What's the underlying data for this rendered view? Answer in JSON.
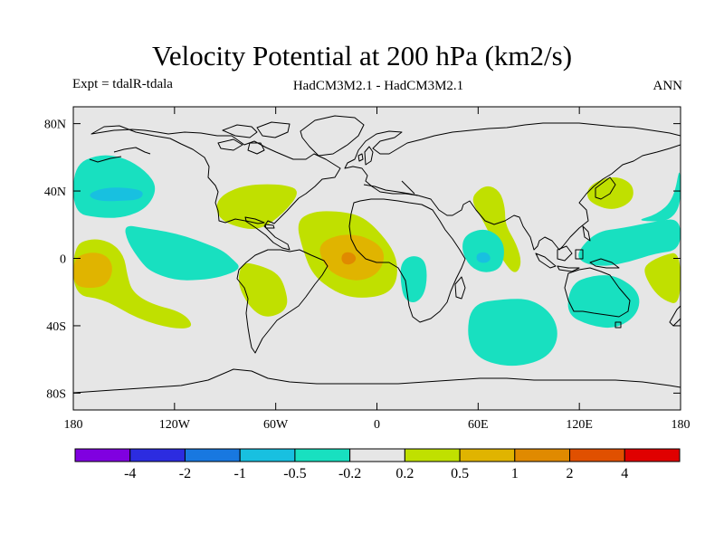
{
  "chart_data": {
    "type": "contour_map",
    "title": "Velocity Potential at 200 hPa (km2/s)",
    "experiment": "Expt = tdalR-tdala",
    "subtitle": "HadCM3M2.1 - HadCM3M2.1",
    "season": "ANN",
    "x_axis": {
      "range": [
        -180,
        180
      ],
      "ticks": [
        -180,
        -120,
        -60,
        0,
        60,
        120,
        180
      ],
      "tick_labels": [
        "180",
        "120W",
        "60W",
        "0",
        "60E",
        "120E",
        "180"
      ]
    },
    "y_axis": {
      "range": [
        -90,
        90
      ],
      "ticks": [
        80,
        40,
        0,
        -40,
        -80
      ],
      "tick_labels": [
        "80N",
        "40N",
        "0",
        "40S",
        "80S"
      ]
    },
    "colorbar": {
      "colors": [
        "#8000e0",
        "#2c2ce0",
        "#1878e0",
        "#18c0e0",
        "#18e0c0",
        "#e6e6e6",
        "#c0e000",
        "#e0b400",
        "#e08a00",
        "#e05000",
        "#e00000"
      ],
      "labels": [
        "-4",
        "-2",
        "-1",
        "-0.5",
        "-0.2",
        "0.2",
        "0.5",
        "1",
        "2",
        "4"
      ]
    },
    "background_color": "#e6e6e6",
    "regions": [
      {
        "name": "NE Pacific negative",
        "level": -0.2,
        "center": [
          -145,
          38
        ],
        "polygon": [
          [
            -180,
            55
          ],
          [
            -165,
            62
          ],
          [
            -150,
            60
          ],
          [
            -137,
            52
          ],
          [
            -130,
            42
          ],
          [
            -136,
            30
          ],
          [
            -150,
            24
          ],
          [
            -165,
            24
          ],
          [
            -180,
            27
          ]
        ]
      },
      {
        "name": "NE Pacific core",
        "level": -0.5,
        "center": [
          -155,
          39
        ],
        "polygon": [
          [
            -172,
            38
          ],
          [
            -162,
            42
          ],
          [
            -148,
            42
          ],
          [
            -138,
            40
          ],
          [
            -140,
            35
          ],
          [
            -152,
            34
          ],
          [
            -166,
            34
          ]
        ]
      },
      {
        "name": "Subtropical East Pacific band",
        "level": -0.2,
        "center": [
          -105,
          0
        ],
        "polygon": [
          [
            -150,
            20
          ],
          [
            -138,
            18
          ],
          [
            -125,
            16
          ],
          [
            -113,
            13
          ],
          [
            -102,
            9
          ],
          [
            -92,
            5
          ],
          [
            -86,
            0
          ],
          [
            -80,
            -6
          ],
          [
            -92,
            -11
          ],
          [
            -105,
            -13
          ],
          [
            -120,
            -13
          ],
          [
            -134,
            -8
          ],
          [
            -140,
            -2
          ],
          [
            -148,
            10
          ]
        ]
      },
      {
        "name": "Central Pacific positive",
        "level": 0.2,
        "center": [
          -164,
          -8
        ],
        "polygon": [
          [
            -180,
            7
          ],
          [
            -170,
            12
          ],
          [
            -158,
            10
          ],
          [
            -150,
            2
          ],
          [
            -148,
            -10
          ],
          [
            -145,
            -20
          ],
          [
            -134,
            -27
          ],
          [
            -115,
            -32
          ],
          [
            -108,
            -41
          ],
          [
            -120,
            -42
          ],
          [
            -142,
            -36
          ],
          [
            -162,
            -24
          ],
          [
            -180,
            -22
          ]
        ]
      },
      {
        "name": "Central Pacific core",
        "level": 0.5,
        "center": [
          -169,
          -8
        ],
        "polygon": [
          [
            -180,
            0
          ],
          [
            -170,
            4
          ],
          [
            -160,
            2
          ],
          [
            -156,
            -6
          ],
          [
            -160,
            -16
          ],
          [
            -170,
            -18
          ],
          [
            -180,
            -16
          ]
        ]
      },
      {
        "name": "Caribbean positive",
        "level": 0.2,
        "center": [
          -72,
          28
        ],
        "polygon": [
          [
            -88,
            40
          ],
          [
            -75,
            44
          ],
          [
            -55,
            44
          ],
          [
            -45,
            40
          ],
          [
            -55,
            27
          ],
          [
            -70,
            16
          ],
          [
            -88,
            20
          ],
          [
            -95,
            26
          ],
          [
            -95,
            34
          ]
        ]
      },
      {
        "name": "South America positive",
        "level": 0.2,
        "center": [
          -58,
          -15
        ],
        "polygon": [
          [
            -80,
            -2
          ],
          [
            -70,
            -4
          ],
          [
            -60,
            -8
          ],
          [
            -55,
            -15
          ],
          [
            -52,
            -30
          ],
          [
            -65,
            -36
          ],
          [
            -75,
            -30
          ],
          [
            -83,
            -15
          ]
        ]
      },
      {
        "name": "Atlantic positive",
        "level": 0.2,
        "center": [
          -17,
          0
        ],
        "polygon": [
          [
            -48,
            22
          ],
          [
            -38,
            28
          ],
          [
            -22,
            28
          ],
          [
            -8,
            25
          ],
          [
            5,
            12
          ],
          [
            12,
            0
          ],
          [
            12,
            -14
          ],
          [
            5,
            -22
          ],
          [
            -12,
            -24
          ],
          [
            -25,
            -20
          ],
          [
            -38,
            -10
          ],
          [
            -44,
            5
          ]
        ]
      },
      {
        "name": "Atlantic core",
        "level": 0.5,
        "center": [
          -16,
          0
        ],
        "polygon": [
          [
            -35,
            8
          ],
          [
            -24,
            14
          ],
          [
            -10,
            14
          ],
          [
            2,
            8
          ],
          [
            5,
            0
          ],
          [
            0,
            -10
          ],
          [
            -12,
            -14
          ],
          [
            -25,
            -10
          ],
          [
            -32,
            -3
          ]
        ]
      },
      {
        "name": "Atlantic peak",
        "level": 1,
        "center": [
          -17,
          0
        ],
        "polygon": [
          [
            -21,
            2
          ],
          [
            -18,
            4
          ],
          [
            -14,
            3
          ],
          [
            -12,
            0
          ],
          [
            -14,
            -3
          ],
          [
            -18,
            -4
          ],
          [
            -21,
            -2
          ]
        ]
      },
      {
        "name": "West Africa negative",
        "level": -0.2,
        "center": [
          22,
          -14
        ],
        "polygon": [
          [
            14,
            -3
          ],
          [
            20,
            2
          ],
          [
            28,
            0
          ],
          [
            30,
            -10
          ],
          [
            28,
            -22
          ],
          [
            22,
            -27
          ],
          [
            16,
            -24
          ],
          [
            14,
            -14
          ]
        ]
      },
      {
        "name": "Arabian Sea positive",
        "level": 0.2,
        "center": [
          70,
          16
        ],
        "polygon": [
          [
            57,
            38
          ],
          [
            65,
            44
          ],
          [
            73,
            40
          ],
          [
            76,
            30
          ],
          [
            76,
            20
          ],
          [
            83,
            8
          ],
          [
            86,
            -3
          ],
          [
            82,
            -10
          ],
          [
            75,
            -2
          ],
          [
            68,
            12
          ],
          [
            62,
            24
          ],
          [
            57,
            32
          ]
        ]
      },
      {
        "name": "Indian Ocean negative",
        "level": -0.2,
        "center": [
          63,
          0
        ],
        "polygon": [
          [
            52,
            14
          ],
          [
            63,
            18
          ],
          [
            72,
            14
          ],
          [
            76,
            6
          ],
          [
            74,
            -6
          ],
          [
            64,
            -9
          ],
          [
            55,
            -5
          ],
          [
            50,
            5
          ]
        ]
      },
      {
        "name": "Indian Ocean core",
        "level": -0.5,
        "center": [
          63,
          0
        ],
        "polygon": [
          [
            59,
            3
          ],
          [
            65,
            4
          ],
          [
            68,
            0
          ],
          [
            65,
            -3
          ],
          [
            59,
            -2
          ]
        ]
      },
      {
        "name": "Southern Indian Ocean negative",
        "level": -0.2,
        "center": [
          75,
          -47
        ],
        "polygon": [
          [
            56,
            -27
          ],
          [
            75,
            -24
          ],
          [
            92,
            -24
          ],
          [
            105,
            -34
          ],
          [
            108,
            -48
          ],
          [
            100,
            -60
          ],
          [
            80,
            -65
          ],
          [
            60,
            -60
          ],
          [
            53,
            -47
          ]
        ]
      },
      {
        "name": "Maritime Continent negative",
        "level": -0.2,
        "center": [
          140,
          5
        ],
        "polygon": [
          [
            118,
            3
          ],
          [
            130,
            16
          ],
          [
            146,
            18
          ],
          [
            165,
            22
          ],
          [
            180,
            24
          ],
          [
            180,
            5
          ],
          [
            165,
            3
          ],
          [
            150,
            -2
          ],
          [
            135,
            -5
          ],
          [
            122,
            -3
          ]
        ]
      },
      {
        "name": "Japan positive",
        "level": 0.2,
        "center": [
          136,
          37
        ],
        "polygon": [
          [
            124,
            40
          ],
          [
            130,
            46
          ],
          [
            142,
            49
          ],
          [
            152,
            44
          ],
          [
            152,
            34
          ],
          [
            140,
            28
          ],
          [
            126,
            33
          ]
        ]
      },
      {
        "name": "Australia negative",
        "level": -0.2,
        "center": [
          135,
          -22
        ],
        "polygon": [
          [
            115,
            -15
          ],
          [
            128,
            -10
          ],
          [
            142,
            -10
          ],
          [
            156,
            -20
          ],
          [
            155,
            -33
          ],
          [
            142,
            -42
          ],
          [
            126,
            -40
          ],
          [
            112,
            -33
          ]
        ]
      },
      {
        "name": "Pacific east edge negative",
        "level": -0.2,
        "center": [
          170,
          35
        ],
        "polygon": [
          [
            152,
            22
          ],
          [
            166,
            26
          ],
          [
            176,
            35
          ],
          [
            180,
            58
          ],
          [
            180,
            22
          ]
        ]
      },
      {
        "name": "SW Pacific positive",
        "level": 0.2,
        "center": [
          172,
          -12
        ],
        "polygon": [
          [
            160,
            -3
          ],
          [
            170,
            2
          ],
          [
            180,
            4
          ],
          [
            180,
            -28
          ],
          [
            170,
            -25
          ],
          [
            163,
            -18
          ],
          [
            158,
            -8
          ]
        ]
      }
    ]
  }
}
